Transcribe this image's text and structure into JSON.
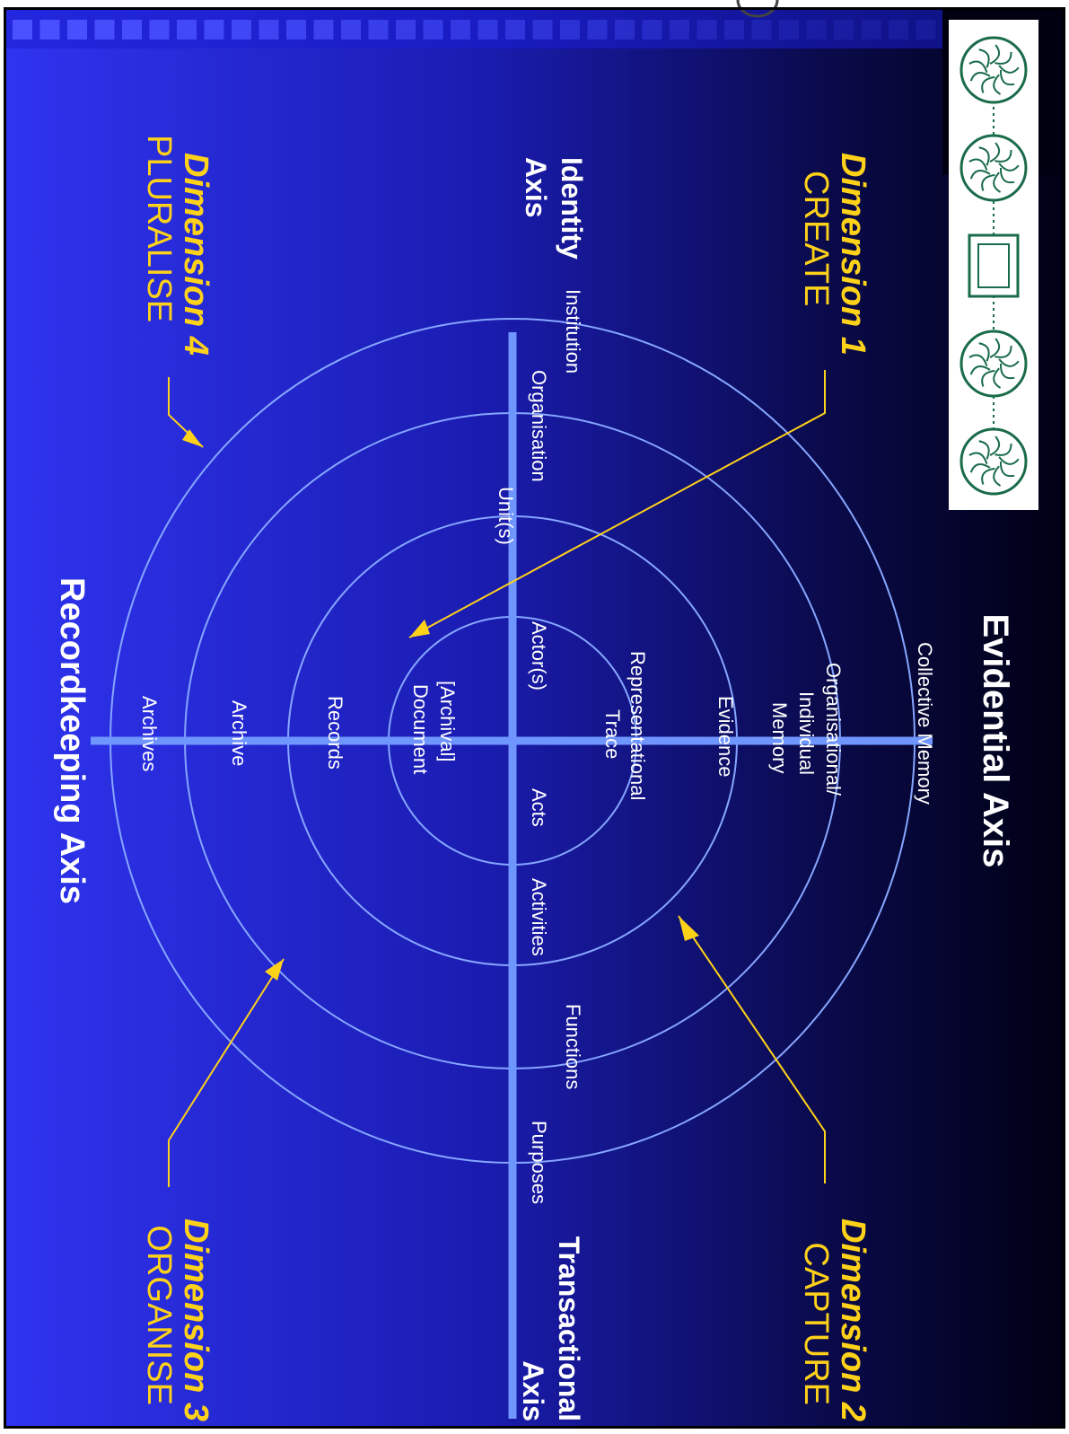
{
  "colors": {
    "background_dark": "#000014",
    "background_blue": "#2a2ee8",
    "ring": "#86a6ff",
    "axis": "#6f95ff",
    "dimension_text": "#ffd21a",
    "label_text": "#ffffff",
    "stripe": "#4a52ff",
    "icon_panel": "#ffffff",
    "icon_ink": "#1a6b4a"
  },
  "diagram": {
    "evidential_axis": "Evidential Axis",
    "recordkeeping_axis": "Recordkeeping Axis",
    "identity_axis": {
      "line1": "Identity",
      "line2": "Axis"
    },
    "transactional_axis": {
      "line1": "Transactional",
      "line2": "Axis"
    },
    "dimensions": [
      {
        "name": "Dimension 1",
        "verb": "CREATE"
      },
      {
        "name": "Dimension 2",
        "verb": "CAPTURE"
      },
      {
        "name": "Dimension 3",
        "verb": "ORGANISE"
      },
      {
        "name": "Dimension 4",
        "verb": "PLURALISE"
      }
    ],
    "identity_labels": [
      "Institution",
      "Organisation",
      "Unit(s)",
      "Actor(s)"
    ],
    "transactional_labels": [
      "Acts",
      "Activities",
      "Functions",
      "Purposes"
    ],
    "evidential_labels": {
      "trace": [
        "Representational",
        "Trace"
      ],
      "evidence": "Evidence",
      "memory": [
        "Organisational/",
        "Individual",
        "Memory"
      ],
      "collective": "Collective Memory"
    },
    "recordkeeping_labels": [
      "[Archival]",
      "Document",
      "Records",
      "Archive",
      "Archives"
    ]
  },
  "icon_strip": {
    "icons": [
      "globe-tree-icon",
      "globe-network-icon",
      "document-frame-icon",
      "globe-hand-icon",
      "globe-pattern-icon"
    ]
  }
}
